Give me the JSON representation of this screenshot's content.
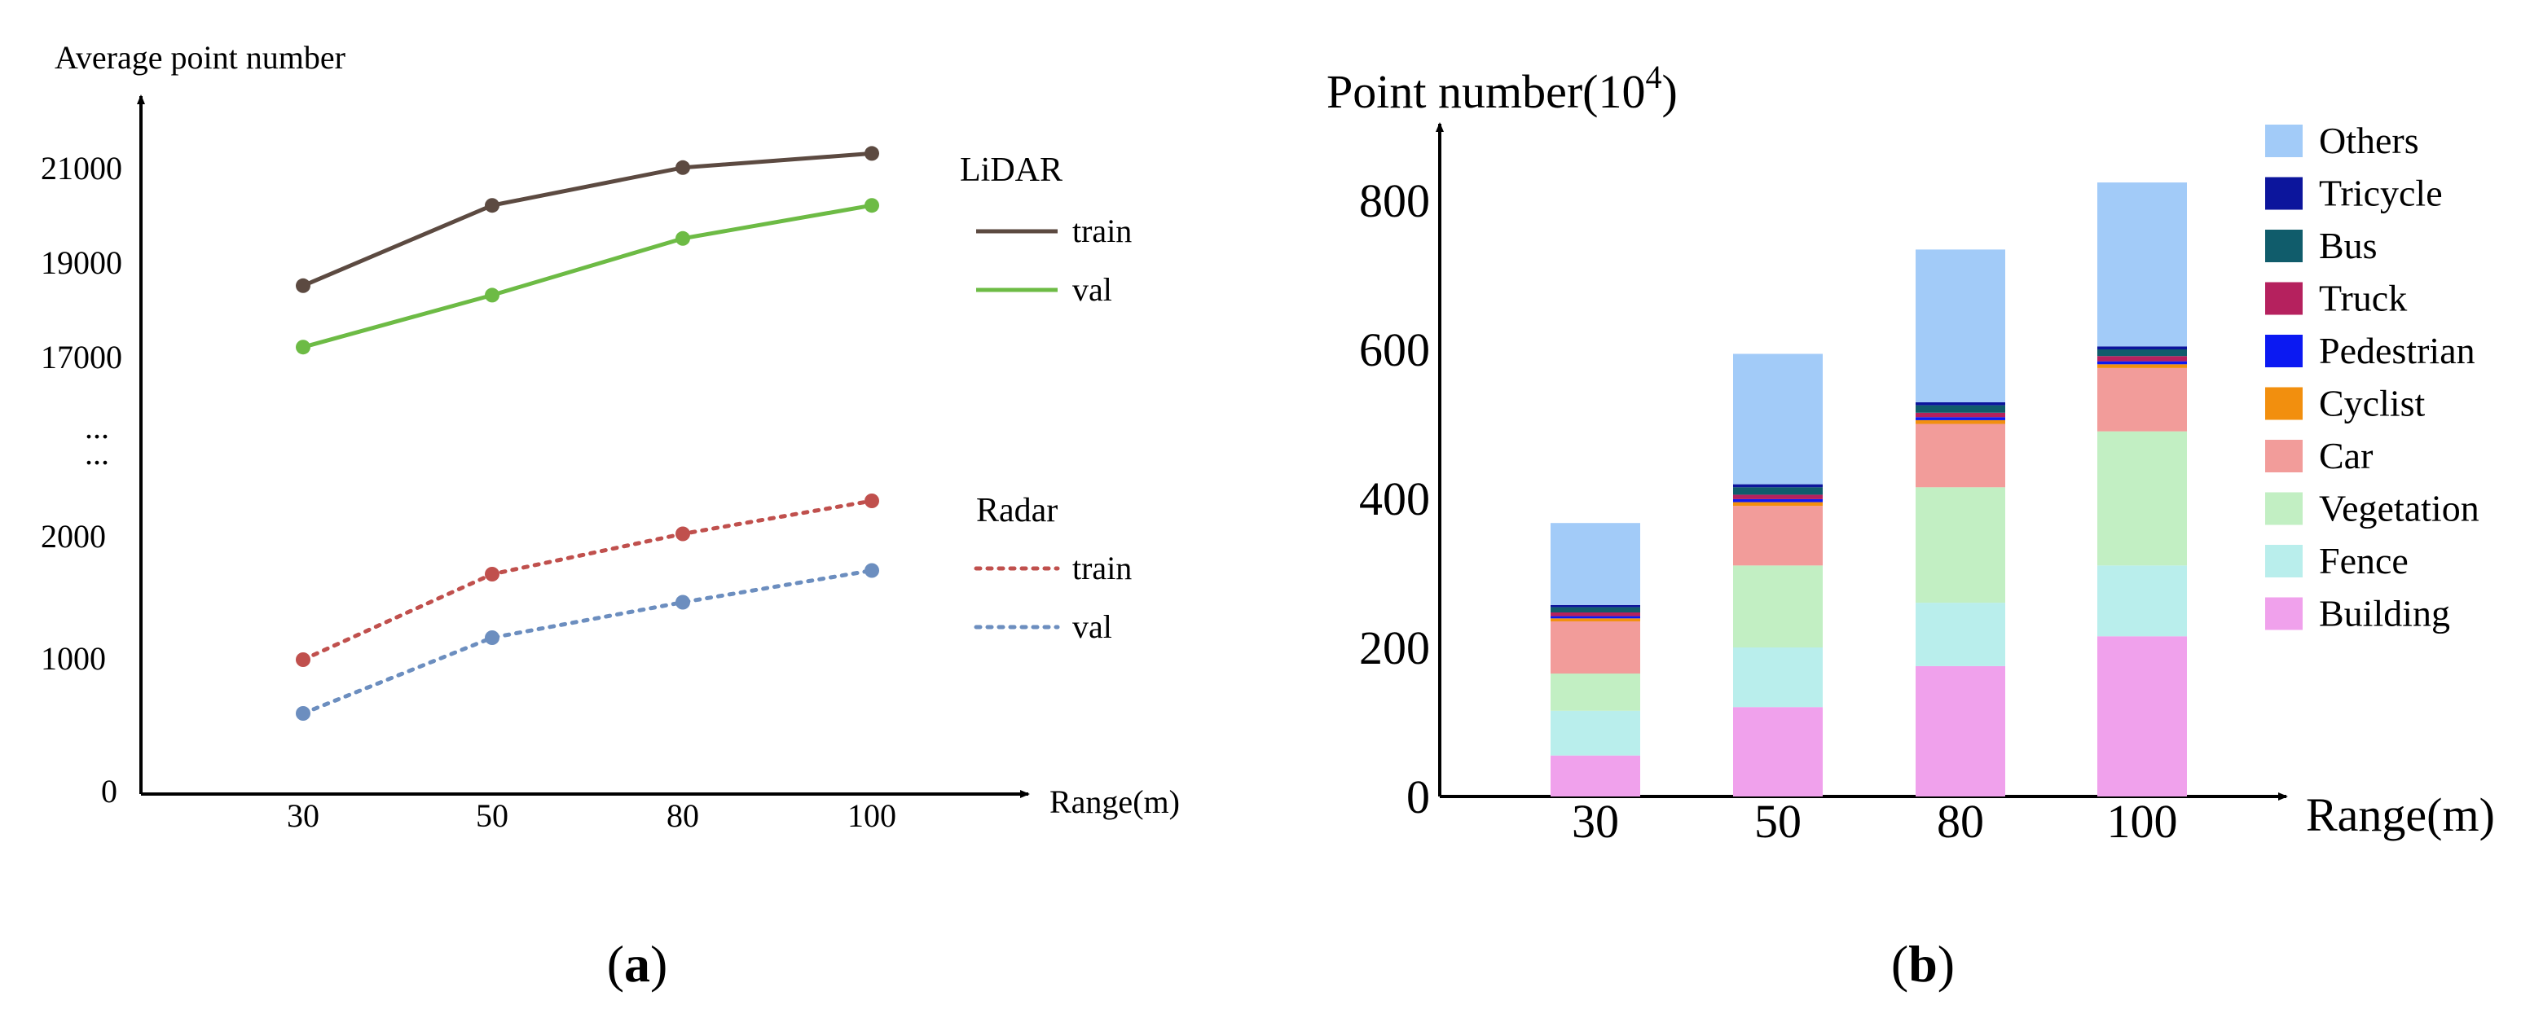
{
  "figure": {
    "panel_a_caption_open": "(",
    "panel_a_caption_letter": "a",
    "panel_a_caption_close": ")",
    "panel_b_caption_open": "(",
    "panel_b_caption_letter": "b",
    "panel_b_caption_close": ")"
  },
  "chart_data": [
    {
      "type": "line",
      "panel": "a",
      "title": "",
      "ylabel": "Average point number",
      "xlabel": "Range(m)",
      "x": [
        30,
        50,
        80,
        100
      ],
      "y_axis_broken": true,
      "y_ticks": [
        "21000",
        "19000",
        "17000",
        "...",
        "...",
        "2000",
        "1000",
        "0"
      ],
      "legend_groups": [
        {
          "title": "LiDAR",
          "series": [
            {
              "name": "train",
              "color": "#5c4a41",
              "style": "solid",
              "values": [
                18400,
                20100,
                20900,
                21200
              ]
            },
            {
              "name": "val",
              "color": "#6dbb45",
              "style": "solid",
              "values": [
                17100,
                18200,
                19400,
                20100
              ]
            }
          ]
        },
        {
          "title": "Radar",
          "series": [
            {
              "name": "train",
              "color": "#c0504d",
              "style": "dotted",
              "values": [
                1000,
                1700,
                2030,
                2300
              ]
            },
            {
              "name": "val",
              "color": "#6c8ebf",
              "style": "dotted",
              "values": [
                600,
                1180,
                1470,
                1730
              ]
            }
          ]
        }
      ],
      "legend_position": "right"
    },
    {
      "type": "bar",
      "stacked": true,
      "panel": "b",
      "title": "",
      "ylabel_text": "Point number(10",
      "ylabel_sup": "4",
      "ylabel_close": ")",
      "xlabel": "Range(m)",
      "categories": [
        "30",
        "50",
        "80",
        "100"
      ],
      "ylim": [
        0,
        860
      ],
      "y_ticks": [
        0,
        200,
        400,
        600,
        800
      ],
      "series": [
        {
          "name": "Building",
          "color": "#f0a1ec",
          "values": [
            55,
            120,
            175,
            215
          ]
        },
        {
          "name": "Fence",
          "color": "#b9eeec",
          "values": [
            60,
            80,
            85,
            95
          ]
        },
        {
          "name": "Vegetation",
          "color": "#c2efc3",
          "values": [
            50,
            110,
            155,
            180
          ]
        },
        {
          "name": "Car",
          "color": "#f29c9a",
          "values": [
            70,
            80,
            85,
            85
          ]
        },
        {
          "name": "Cyclist",
          "color": "#f28f0e",
          "values": [
            4,
            5,
            5,
            5
          ]
        },
        {
          "name": "Pedestrian",
          "color": "#0b19f2",
          "values": [
            3,
            4,
            4,
            4
          ]
        },
        {
          "name": "Truck",
          "color": "#b5215e",
          "values": [
            5,
            6,
            6,
            7
          ]
        },
        {
          "name": "Bus",
          "color": "#105c6b",
          "values": [
            7,
            10,
            10,
            9
          ]
        },
        {
          "name": "Tricycle",
          "color": "#0c159c",
          "values": [
            3,
            4,
            4,
            4
          ]
        },
        {
          "name": "Others",
          "color": "#a2cbf8",
          "values": [
            110,
            175,
            205,
            220
          ]
        }
      ],
      "legend_order": [
        "Others",
        "Tricycle",
        "Bus",
        "Truck",
        "Pedestrian",
        "Cyclist",
        "Car",
        "Vegetation",
        "Fence",
        "Building"
      ],
      "legend_position": "right"
    }
  ]
}
